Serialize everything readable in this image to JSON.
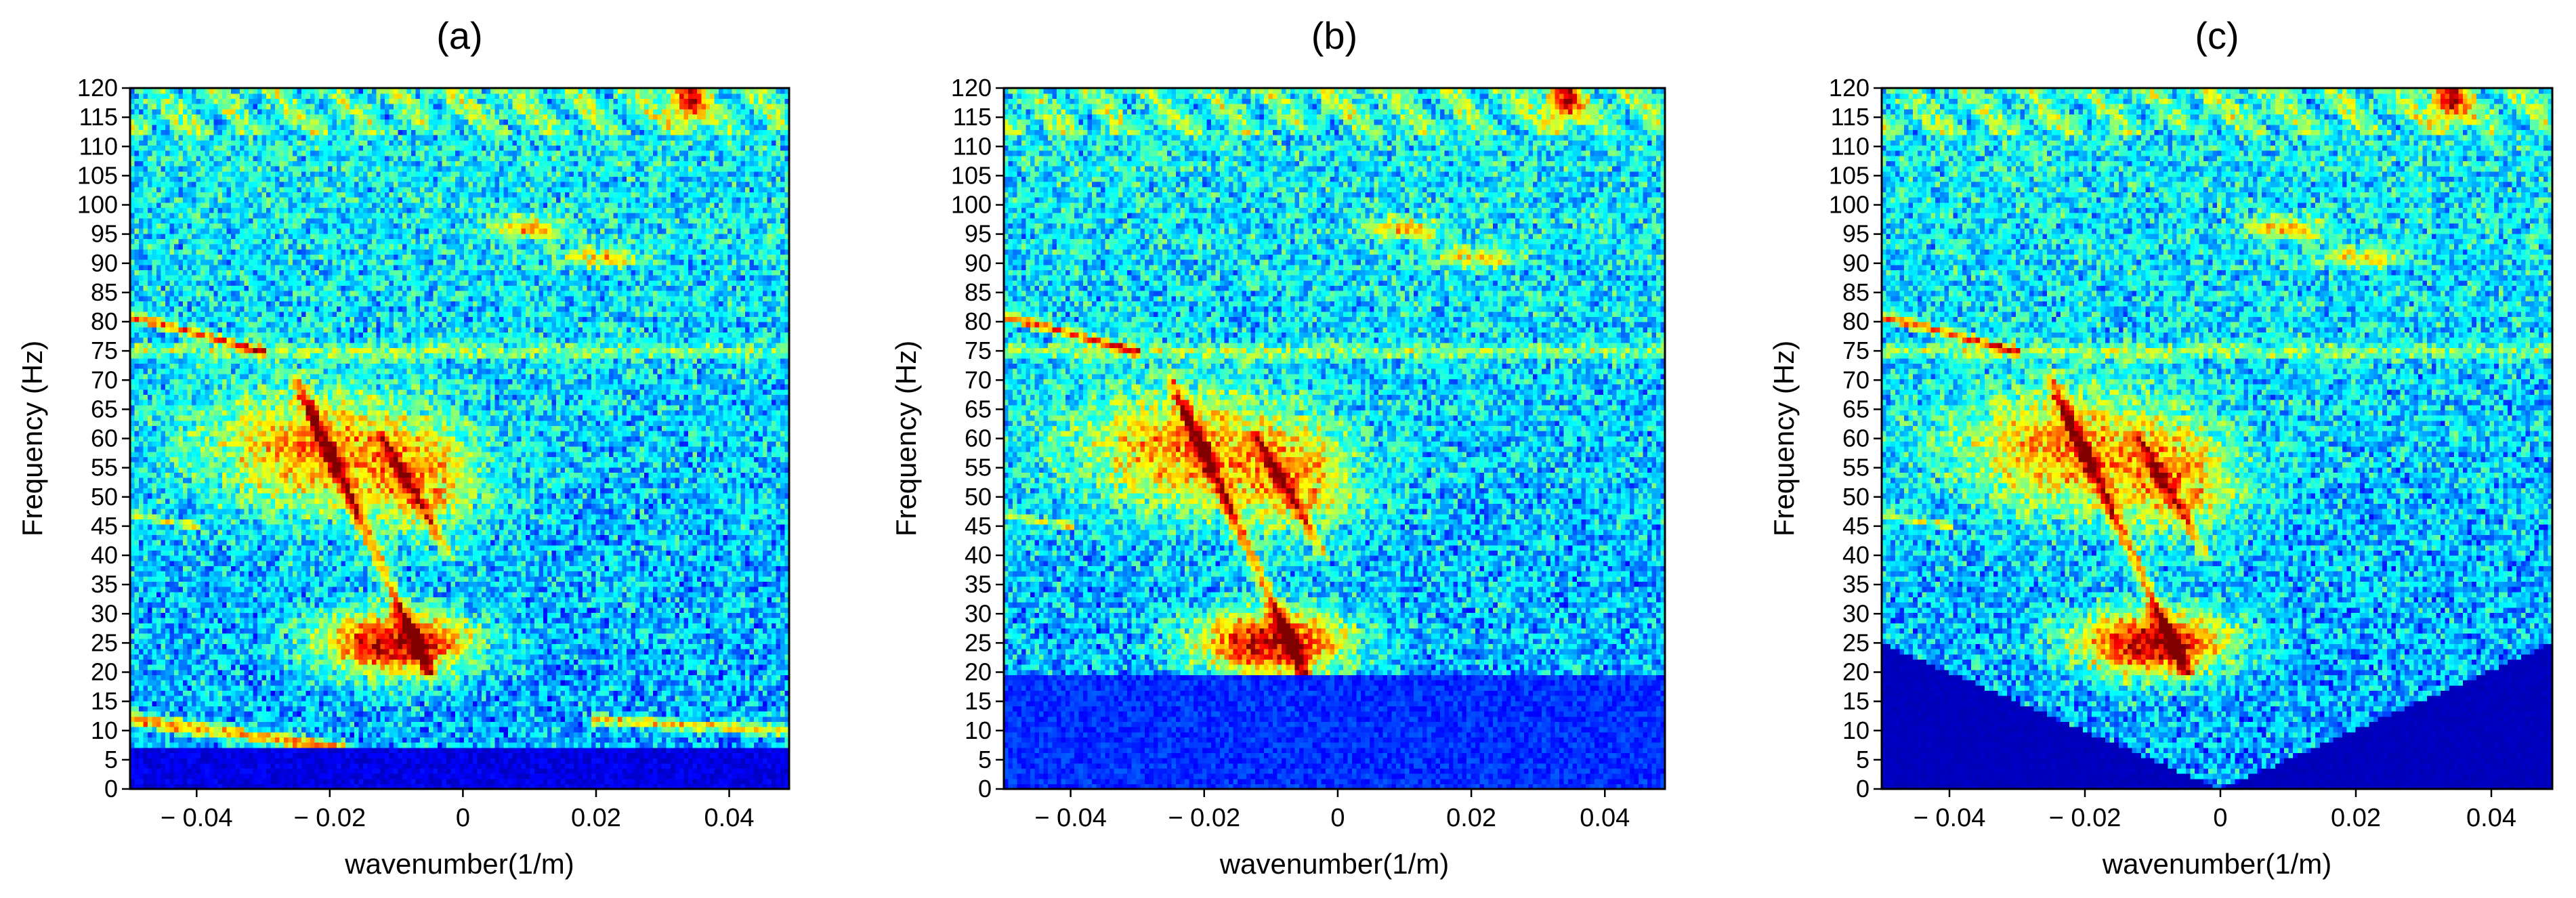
{
  "chart_data": [
    {
      "type": "heatmap",
      "title": "(a)",
      "xlabel": "wavenumber(1/m)",
      "ylabel": "Frequency (Hz)",
      "xlim": [
        -0.05,
        0.049
      ],
      "ylim": [
        0,
        120
      ],
      "xticks": [
        -0.04,
        -0.02,
        0,
        0.02,
        0.04
      ],
      "xtick_labels": [
        "− 0.04",
        "− 0.02",
        "0",
        "0.02",
        "0.04"
      ],
      "yticks": [
        0,
        5,
        10,
        15,
        20,
        25,
        30,
        35,
        40,
        45,
        50,
        55,
        60,
        65,
        70,
        75,
        80,
        85,
        90,
        95,
        100,
        105,
        110,
        115,
        120
      ],
      "colormap": "jet",
      "processing": "none",
      "mute_boundary": null
    },
    {
      "type": "heatmap",
      "title": "(b)",
      "xlabel": "wavenumber(1/m)",
      "ylabel": "Frequency (Hz)",
      "xlim": [
        -0.05,
        0.049
      ],
      "ylim": [
        0,
        120
      ],
      "xticks": [
        -0.04,
        -0.02,
        0,
        0.02,
        0.04
      ],
      "xtick_labels": [
        "− 0.04",
        "− 0.02",
        "0",
        "0.02",
        "0.04"
      ],
      "yticks": [
        0,
        5,
        10,
        15,
        20,
        25,
        30,
        35,
        40,
        45,
        50,
        55,
        60,
        65,
        70,
        75,
        80,
        85,
        90,
        95,
        100,
        105,
        110,
        115,
        120
      ],
      "colormap": "jet",
      "processing": "low-frequency band suppressed below ~20 Hz",
      "mute_boundary": null
    },
    {
      "type": "heatmap",
      "title": "(c)",
      "xlabel": "wavenumber(1/m)",
      "ylabel": "Frequency (Hz)",
      "xlim": [
        -0.05,
        0.049
      ],
      "ylim": [
        0,
        120
      ],
      "xticks": [
        -0.04,
        -0.02,
        0,
        0.02,
        0.04
      ],
      "xtick_labels": [
        "− 0.04",
        "− 0.02",
        "0",
        "0.02",
        "0.04"
      ],
      "yticks": [
        0,
        5,
        10,
        15,
        20,
        25,
        30,
        35,
        40,
        45,
        50,
        55,
        60,
        65,
        70,
        75,
        80,
        85,
        90,
        95,
        100,
        105,
        110,
        115,
        120
      ],
      "colormap": "jet",
      "processing": "V-shaped fan mute",
      "mute_boundary": [
        [
          -0.05,
          25
        ],
        [
          0,
          0
        ],
        [
          0.049,
          25
        ]
      ]
    }
  ]
}
